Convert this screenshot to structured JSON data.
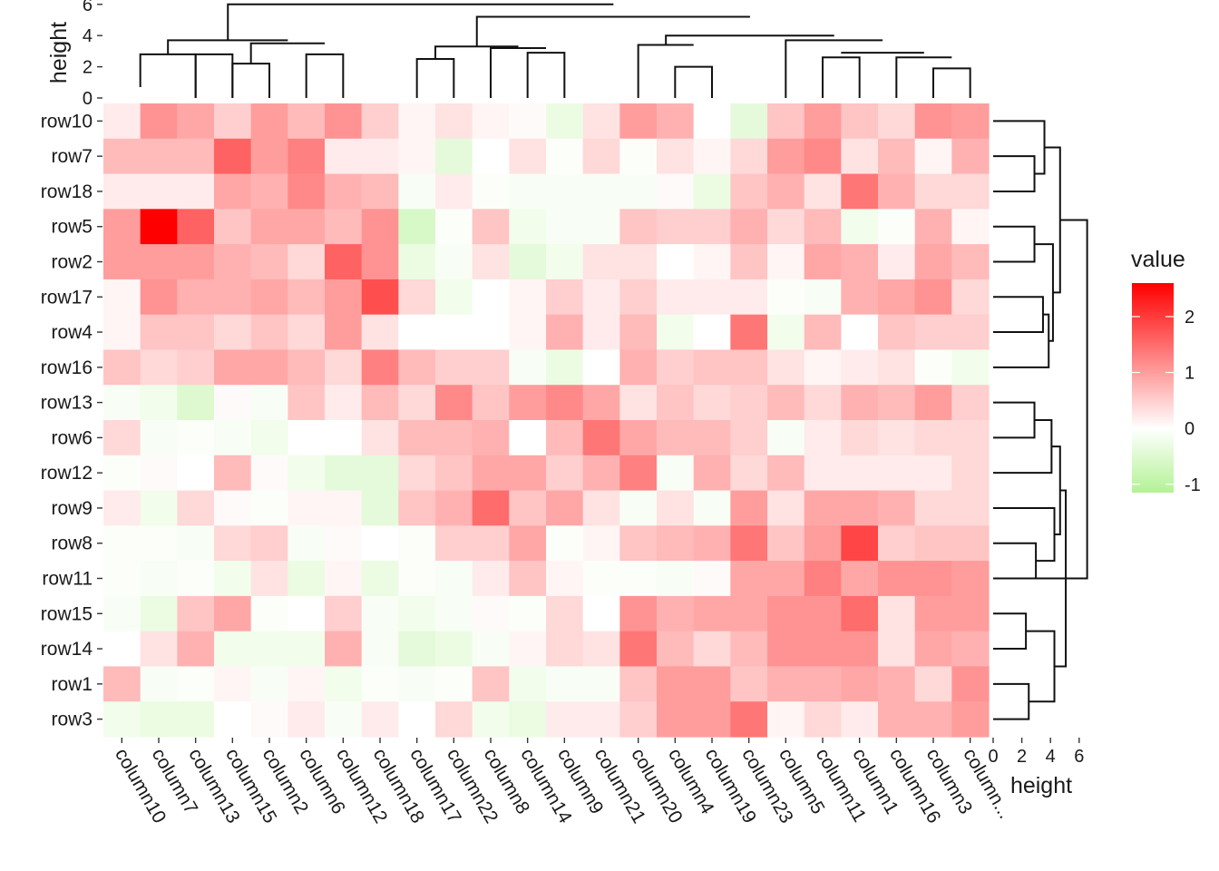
{
  "chart_data": {
    "type": "heatmap",
    "legend": {
      "title": "value",
      "ticks": [
        2,
        1,
        0,
        -1
      ],
      "range": [
        -1.15,
        2.6
      ],
      "colors": {
        "low": "#b3f294",
        "mid": "#ffffff",
        "high": "#ff0000"
      },
      "placement": "right"
    },
    "rows": [
      "row10",
      "row7",
      "row18",
      "row5",
      "row2",
      "row17",
      "row4",
      "row16",
      "row13",
      "row6",
      "row12",
      "row9",
      "row8",
      "row11",
      "row15",
      "row14",
      "row1",
      "row3"
    ],
    "columns": [
      "column10",
      "column7",
      "column13",
      "column15",
      "column2",
      "column6",
      "column12",
      "column18",
      "column17",
      "column22",
      "column8",
      "column14",
      "column9",
      "column21",
      "column20",
      "column4",
      "column19",
      "column23",
      "column5",
      "column11",
      "column1",
      "column16",
      "column3",
      "column..."
    ],
    "values": [
      [
        0.2,
        1.1,
        0.9,
        0.5,
        1.0,
        0.7,
        1.1,
        0.5,
        0.1,
        0.3,
        0.1,
        0.05,
        -0.3,
        0.3,
        1.0,
        0.8,
        0.0,
        -0.4,
        0.6,
        1.0,
        0.6,
        0.4,
        1.1,
        1.0
      ],
      [
        0.7,
        0.7,
        0.7,
        1.6,
        1.0,
        1.3,
        0.2,
        0.2,
        0.1,
        -0.4,
        0.0,
        0.3,
        -0.05,
        0.4,
        -0.05,
        0.3,
        0.1,
        0.4,
        1.0,
        1.2,
        0.3,
        0.7,
        0.1,
        0.8
      ],
      [
        0.2,
        0.2,
        0.2,
        0.9,
        0.8,
        1.2,
        0.8,
        0.7,
        -0.1,
        0.2,
        -0.05,
        -0.1,
        -0.1,
        -0.1,
        -0.1,
        0.05,
        -0.3,
        0.6,
        0.8,
        0.3,
        1.4,
        0.8,
        0.4,
        0.4
      ],
      [
        1.0,
        2.6,
        1.6,
        0.6,
        0.9,
        0.9,
        0.7,
        1.1,
        -0.6,
        -0.05,
        0.6,
        -0.2,
        -0.1,
        -0.1,
        0.6,
        0.5,
        0.5,
        0.8,
        0.4,
        0.7,
        -0.2,
        -0.05,
        0.8,
        0.1
      ],
      [
        1.0,
        1.0,
        1.0,
        0.8,
        0.7,
        0.4,
        1.6,
        1.1,
        -0.3,
        -0.1,
        0.3,
        -0.4,
        -0.2,
        0.3,
        0.3,
        0.0,
        0.1,
        0.6,
        0.1,
        0.9,
        0.8,
        0.2,
        0.9,
        0.7
      ],
      [
        0.1,
        1.1,
        0.8,
        0.8,
        0.9,
        0.7,
        1.0,
        1.8,
        0.4,
        -0.2,
        0.0,
        0.1,
        0.5,
        0.2,
        0.5,
        0.2,
        0.2,
        0.2,
        -0.05,
        -0.1,
        0.8,
        0.9,
        1.1,
        0.4
      ],
      [
        0.1,
        0.6,
        0.6,
        0.4,
        0.6,
        0.4,
        1.0,
        0.3,
        0.0,
        0.0,
        0.0,
        0.1,
        0.8,
        0.2,
        0.7,
        -0.2,
        0.0,
        1.4,
        -0.2,
        0.7,
        0.0,
        0.6,
        0.5,
        0.5
      ],
      [
        0.6,
        0.4,
        0.5,
        0.9,
        0.9,
        0.7,
        0.4,
        1.3,
        0.7,
        0.5,
        0.5,
        -0.1,
        -0.3,
        0.0,
        0.8,
        0.5,
        0.6,
        0.6,
        0.3,
        0.1,
        0.2,
        0.3,
        -0.05,
        -0.2
      ],
      [
        -0.1,
        -0.2,
        -0.5,
        0.05,
        -0.1,
        0.6,
        0.2,
        0.7,
        0.4,
        1.2,
        0.6,
        1.0,
        1.2,
        0.9,
        0.3,
        0.6,
        0.4,
        0.5,
        0.7,
        0.4,
        0.8,
        0.7,
        1.0,
        0.5
      ],
      [
        0.4,
        -0.1,
        -0.05,
        -0.1,
        -0.2,
        0.0,
        0.0,
        0.3,
        0.7,
        0.7,
        0.8,
        0.0,
        0.7,
        1.4,
        0.9,
        0.7,
        0.7,
        0.5,
        -0.1,
        0.2,
        0.4,
        0.3,
        0.4,
        0.4
      ],
      [
        -0.05,
        0.05,
        0.0,
        0.7,
        0.05,
        -0.2,
        -0.4,
        -0.4,
        0.4,
        0.6,
        0.9,
        0.9,
        0.5,
        0.8,
        1.3,
        -0.1,
        0.8,
        0.4,
        0.7,
        0.2,
        0.2,
        0.2,
        0.2,
        0.4
      ],
      [
        0.2,
        -0.2,
        0.4,
        0.05,
        -0.05,
        0.1,
        0.1,
        -0.4,
        0.6,
        0.8,
        1.5,
        0.6,
        0.9,
        0.3,
        -0.1,
        0.3,
        -0.1,
        1.0,
        0.3,
        0.9,
        0.9,
        0.8,
        0.4,
        0.4
      ],
      [
        -0.05,
        -0.05,
        -0.1,
        0.4,
        0.5,
        -0.1,
        0.05,
        0.0,
        -0.05,
        0.5,
        0.5,
        0.9,
        -0.05,
        0.1,
        0.6,
        0.7,
        0.8,
        1.4,
        0.6,
        1.0,
        1.9,
        0.5,
        0.6,
        0.6
      ],
      [
        -0.05,
        -0.1,
        -0.05,
        -0.2,
        0.3,
        -0.3,
        0.1,
        -0.3,
        -0.05,
        -0.1,
        0.2,
        0.6,
        0.1,
        -0.05,
        -0.05,
        -0.1,
        0.05,
        0.9,
        0.9,
        1.3,
        0.9,
        1.1,
        1.1,
        1.0
      ],
      [
        -0.1,
        -0.3,
        0.6,
        0.9,
        -0.05,
        0.0,
        0.5,
        -0.1,
        -0.2,
        -0.1,
        0.05,
        -0.05,
        0.4,
        0.0,
        1.1,
        0.8,
        0.9,
        0.9,
        1.1,
        1.1,
        1.5,
        0.3,
        1.0,
        1.0
      ],
      [
        0.0,
        0.3,
        0.8,
        -0.2,
        -0.2,
        -0.2,
        0.8,
        -0.1,
        -0.4,
        -0.3,
        -0.1,
        0.1,
        0.4,
        0.3,
        1.4,
        0.7,
        0.4,
        0.7,
        1.1,
        1.1,
        1.1,
        0.3,
        0.9,
        0.8
      ],
      [
        0.7,
        -0.1,
        -0.05,
        0.1,
        -0.1,
        0.1,
        -0.2,
        -0.05,
        -0.1,
        -0.05,
        0.6,
        -0.2,
        -0.1,
        -0.1,
        0.6,
        1.0,
        1.0,
        0.6,
        0.8,
        0.8,
        0.9,
        0.8,
        0.4,
        1.1
      ],
      [
        -0.2,
        -0.3,
        -0.3,
        0.0,
        0.05,
        0.2,
        -0.1,
        0.2,
        0.0,
        0.4,
        -0.2,
        -0.3,
        0.2,
        0.2,
        0.5,
        1.0,
        1.0,
        1.4,
        0.1,
        0.4,
        0.2,
        0.8,
        0.8,
        1.0
      ]
    ],
    "top_dendrogram": {
      "axis_label": "height",
      "axis_ticks": [
        0,
        2,
        4,
        6
      ],
      "ylim": [
        0,
        6
      ],
      "merges": [
        [
          0.5,
          2.0,
          0.7,
          2.8
        ],
        [
          2.0,
          3.0,
          1.8,
          2.8
        ],
        [
          3.0,
          4.0,
          1.8,
          2.2
        ],
        [
          5.0,
          6.0,
          1.8,
          2.8
        ],
        [
          3.5,
          5.5,
          2.2,
          3.5
        ],
        [
          1.25,
          4.5,
          2.8,
          3.7
        ],
        [
          8.0,
          9.0,
          2.5,
          2.5
        ],
        [
          11.0,
          12.0,
          2.3,
          2.9
        ],
        [
          10.0,
          11.5,
          2.9,
          3.2
        ],
        [
          8.5,
          10.75,
          2.5,
          3.3
        ],
        [
          15.0,
          16.0,
          2.0,
          2.0
        ],
        [
          14.0,
          15.5,
          3.4,
          3.4
        ],
        [
          19.0,
          20.0,
          2.6,
          2.6
        ],
        [
          22.0,
          23.0,
          1.9,
          1.9
        ],
        [
          21.0,
          22.5,
          2.6,
          2.6
        ],
        [
          19.5,
          21.75,
          2.9,
          2.9
        ],
        [
          18.0,
          20.625,
          3.7,
          3.7
        ],
        [
          14.75,
          19.3125,
          3.4,
          4.0
        ],
        [
          9.625,
          17.03125,
          3.3,
          5.2
        ],
        [
          2.875,
          13.328125,
          3.7,
          6.0
        ]
      ]
    },
    "right_dendrogram": {
      "axis_label": "height",
      "axis_ticks": [
        0,
        2,
        4,
        6
      ],
      "xlim": [
        0,
        6
      ],
      "merges": [
        [
          1.0,
          2.0,
          2.9,
          2.9
        ],
        [
          0.0,
          1.5,
          3.6,
          3.6
        ],
        [
          3.0,
          4.0,
          2.9,
          2.9
        ],
        [
          5.0,
          6.0,
          3.5,
          3.5
        ],
        [
          5.5,
          7.0,
          3.9,
          3.9
        ],
        [
          3.5,
          6.25,
          4.2,
          4.2
        ],
        [
          0.75,
          4.875,
          4.7,
          4.7
        ],
        [
          8.0,
          9.0,
          2.9,
          2.9
        ],
        [
          8.5,
          10.0,
          4.1,
          4.1
        ],
        [
          12.0,
          13.0,
          3.0,
          3.0
        ],
        [
          11.0,
          12.5,
          4.3,
          4.3
        ],
        [
          9.25,
          11.75,
          4.7,
          4.7
        ],
        [
          14.0,
          15.0,
          2.3,
          2.3
        ],
        [
          16.0,
          17.0,
          2.5,
          2.5
        ],
        [
          14.5,
          16.5,
          4.3,
          4.3
        ],
        [
          10.5,
          15.5,
          5.1,
          5.1
        ],
        [
          2.8125,
          13.0,
          6.6,
          6.6
        ]
      ]
    }
  }
}
